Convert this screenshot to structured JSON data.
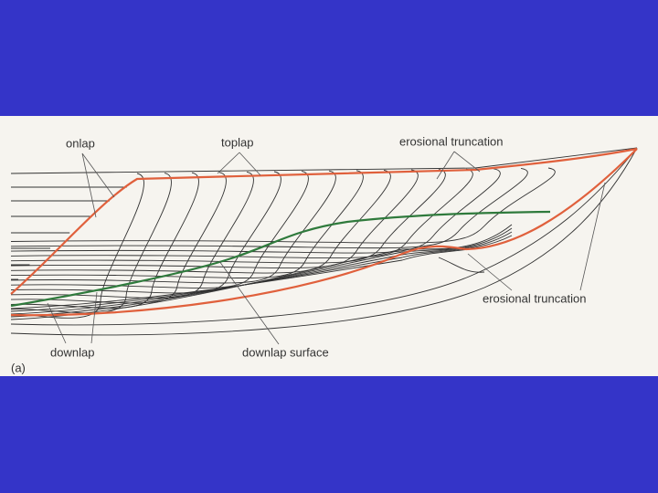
{
  "labels": {
    "onlap": "onlap",
    "toplap": "toplap",
    "erosional_top": "erosional truncation",
    "erosional_bottom": "erosional truncation",
    "downlap": "downlap",
    "downlap_surface": "downlap surface",
    "panel": "(a)"
  }
}
